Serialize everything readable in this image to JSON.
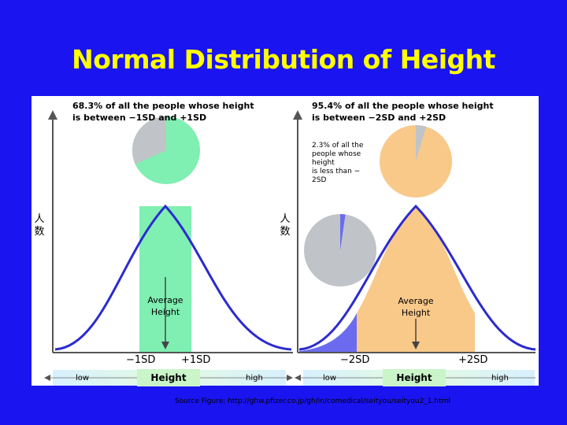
{
  "title": "Normal Distribution of Height",
  "left_panel": {
    "caption_line1": "68.3% of all the people whose height",
    "caption_line2": "is between −1SD and +1SD",
    "y_label_top": "人",
    "y_label_bottom": "数",
    "average_line1": "Average",
    "average_line2": "Height",
    "tick_minus": "−1SD",
    "tick_plus": "+1SD",
    "bar_low": "low",
    "bar_height": "Height",
    "bar_high": "high",
    "pie_share_percent": 68.3
  },
  "right_panel": {
    "caption_line1": "95.4% of all the people whose height",
    "caption_line2": "is between −2SD and +2SD",
    "note_lines": [
      "2.3% of all the",
      "people whose",
      "height",
      "is less than −",
      "2SD"
    ],
    "y_label_top": "人",
    "y_label_bottom": "数",
    "average_line1": "Average",
    "average_line2": "Height",
    "tick_minus": "−2SD",
    "tick_plus": "+2SD",
    "bar_low": "low",
    "bar_height": "Height",
    "bar_high": "high",
    "pie_large_share_percent": 95.4,
    "pie_small_share_percent": 2.3
  },
  "source": "Source Figure; http://ghw.pfizer.co.jp/gh/in/comedical/seityou/seityou2_1.html",
  "colors": {
    "background": "#1a14f0",
    "title": "#ffff00",
    "green_fill": "#7fefb2",
    "orange_fill": "#f9c98a",
    "blue_tail": "#6b6bf0",
    "curve": "#2b2bd0",
    "pie_gray": "#c0c4c8"
  }
}
